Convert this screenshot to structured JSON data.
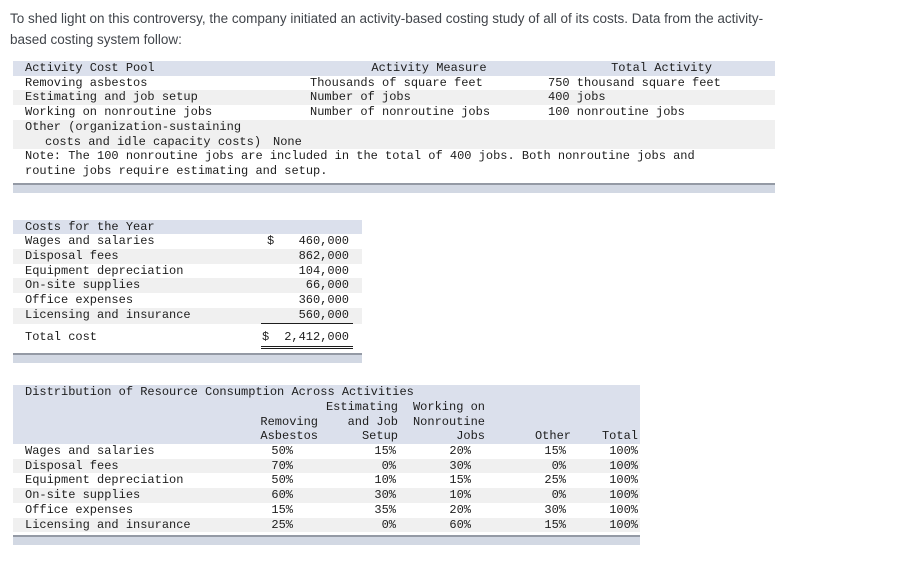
{
  "intro": {
    "line1": "To shed light on this controversy, the company initiated an activity-based costing study of all of its costs. Data from the activity-",
    "line2": "based costing system follow:"
  },
  "activity_table": {
    "headers": [
      "Activity Cost Pool",
      "Activity Measure",
      "Total Activity"
    ],
    "rows": [
      {
        "pool": "Removing asbestos",
        "measure": "Thousands of square feet",
        "total": "750 thousand square feet"
      },
      {
        "pool": "Estimating and job setup",
        "measure": "Number of jobs",
        "total": "400 jobs"
      },
      {
        "pool": "Working on nonroutine jobs",
        "measure": "Number of nonroutine jobs",
        "total": "100 nonroutine jobs"
      },
      {
        "pool_line1": "Other (organization-sustaining",
        "pool_line2": "costs and idle capacity costs)",
        "measure": "None",
        "total": ""
      }
    ],
    "note_line1": "Note: The 100 nonroutine jobs are included in the total of 400 jobs. Both nonroutine jobs and",
    "note_line2": "routine jobs require estimating and setup."
  },
  "costs_table": {
    "title": "Costs for the Year",
    "rows": [
      {
        "label": "Wages and salaries",
        "currency": "$",
        "amount": "460,000"
      },
      {
        "label": "Disposal fees",
        "currency": "",
        "amount": "862,000"
      },
      {
        "label": "Equipment depreciation",
        "currency": "",
        "amount": "104,000"
      },
      {
        "label": "On-site supplies",
        "currency": "",
        "amount": "66,000"
      },
      {
        "label": "Office expenses",
        "currency": "",
        "amount": "360,000"
      },
      {
        "label": "Licensing and insurance",
        "currency": "",
        "amount": "560,000"
      }
    ],
    "total": {
      "label": "Total cost",
      "currency": "$",
      "amount": "2,412,000"
    }
  },
  "distribution_table": {
    "title": "Distribution of Resource Consumption Across Activities",
    "col_headers": {
      "asbestos": [
        "Removing",
        "Asbestos"
      ],
      "setup": [
        "Estimating",
        "and Job",
        "Setup"
      ],
      "nonroutine": [
        "Working on",
        "Nonroutine",
        "Jobs"
      ],
      "other": [
        "Other"
      ],
      "total": [
        "Total"
      ]
    },
    "rows": [
      {
        "label": "Wages and salaries",
        "values": [
          "50%",
          "15%",
          "20%",
          "15%",
          "100%"
        ]
      },
      {
        "label": "Disposal fees",
        "values": [
          "70%",
          "0%",
          "30%",
          "0%",
          "100%"
        ]
      },
      {
        "label": "Equipment depreciation",
        "values": [
          "50%",
          "10%",
          "15%",
          "25%",
          "100%"
        ]
      },
      {
        "label": "On-site supplies",
        "values": [
          "60%",
          "30%",
          "10%",
          "0%",
          "100%"
        ]
      },
      {
        "label": "Office expenses",
        "values": [
          "15%",
          "35%",
          "20%",
          "30%",
          "100%"
        ]
      },
      {
        "label": "Licensing and insurance",
        "values": [
          "25%",
          "0%",
          "60%",
          "15%",
          "100%"
        ]
      }
    ]
  },
  "colors": {
    "header_band": "#dbe0ec",
    "row_alt": "#f0f0f0",
    "scrollbar_track": "#d2d8e3",
    "scrollbar_border": "#949aa5",
    "table_text": "#1d1d1d",
    "intro_text": "#41454b"
  }
}
